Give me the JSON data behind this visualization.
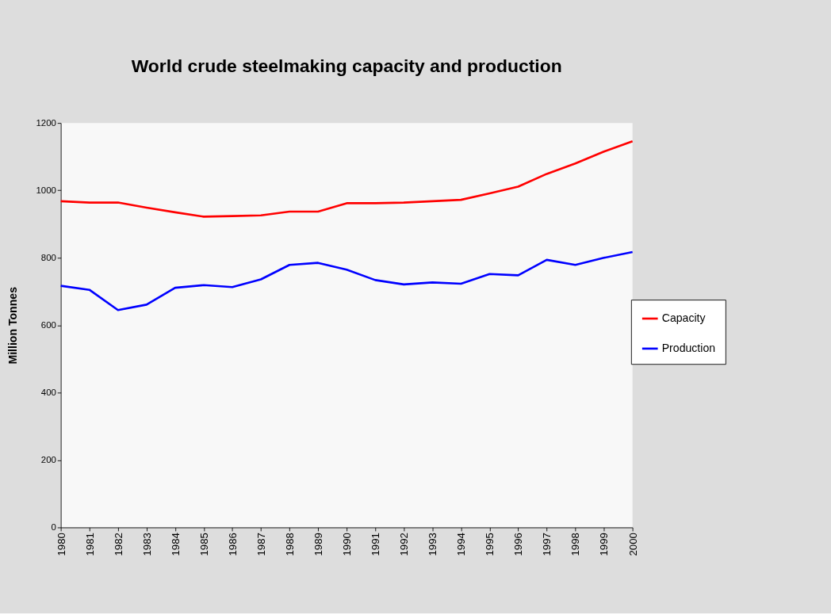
{
  "chart_data": {
    "type": "line",
    "title": "World crude steelmaking capacity and production",
    "ylabel": "Million Tonnes",
    "categories": [
      "1980",
      "1981",
      "1982",
      "1983",
      "1984",
      "1985",
      "1986",
      "1987",
      "1988",
      "1989",
      "1990",
      "1991",
      "1992",
      "1993",
      "1994",
      "1995",
      "1996",
      "1997",
      "1998",
      "1999",
      "2000"
    ],
    "series": [
      {
        "name": "Capacity",
        "color": "#ff0000",
        "values": [
          968,
          964,
          964,
          949,
          935,
          922,
          924,
          926,
          937,
          937,
          962,
          962,
          964,
          968,
          972,
          991,
          1011,
          1049,
          1080,
          1115,
          1146
        ]
      },
      {
        "name": "Production",
        "color": "#0000ff",
        "values": [
          717,
          705,
          645,
          661,
          711,
          719,
          713,
          736,
          779,
          785,
          765,
          734,
          721,
          727,
          723,
          752,
          748,
          794,
          779,
          800,
          817
        ]
      }
    ],
    "ylim": [
      0,
      1200
    ],
    "yticks": [
      0,
      200,
      400,
      600,
      800,
      {
        "value": 1000,
        "label": "1000"
      },
      {
        "value": 1200,
        "label": "1200"
      }
    ],
    "grid": false,
    "legend": "right",
    "marker": "none",
    "line_style": "solid"
  }
}
